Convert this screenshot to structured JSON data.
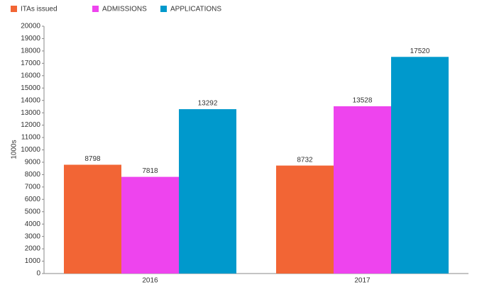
{
  "chart_data": {
    "type": "bar",
    "categories": [
      "2016",
      "2017"
    ],
    "series": [
      {
        "name": "ITAs issued",
        "color": "#f26535",
        "values": [
          8798,
          8732
        ]
      },
      {
        "name": "ADMISSIONS",
        "color": "#ee44ee",
        "values": [
          7818,
          13528
        ]
      },
      {
        "name": "APPLICATIONS",
        "color": "#0099cc",
        "values": [
          13292,
          17520
        ]
      }
    ],
    "y_label": "1000s",
    "ylim": [
      0,
      20000
    ],
    "yticks": [
      0,
      1000,
      2000,
      3000,
      4000,
      5000,
      6000,
      7000,
      8000,
      9000,
      10000,
      11000,
      12000,
      13000,
      14000,
      15000,
      16000,
      17000,
      18000,
      19000,
      20000
    ],
    "grid": false,
    "legend": "top-left"
  }
}
